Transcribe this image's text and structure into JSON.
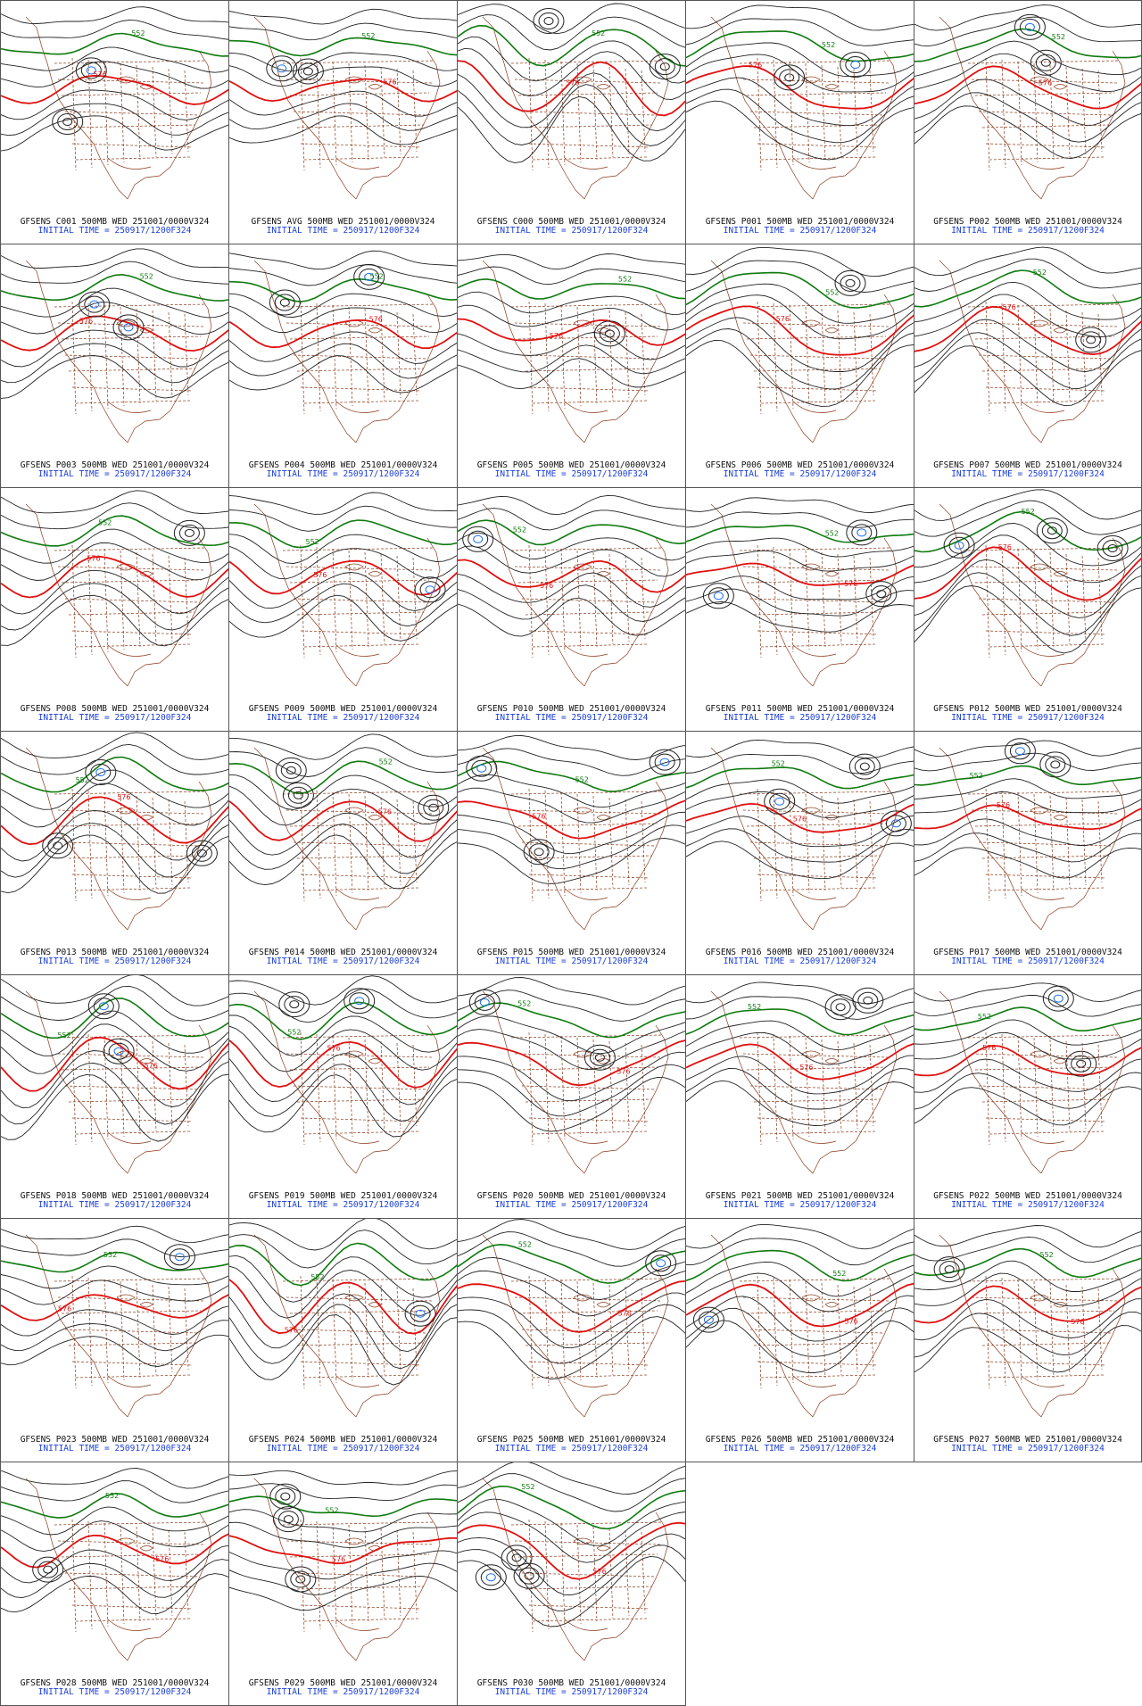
{
  "colors": {
    "contour": "#222222",
    "contour_552": "#0f7a0f",
    "contour_576": "#e01010",
    "contour_low": "#1c6ff0",
    "map_outline": "#8b3a1a",
    "caption_model": "#111111",
    "caption_time": "#1c3fd6"
  },
  "contour_labels": {
    "green": "552",
    "red": "576"
  },
  "panels": [
    {
      "member": "C001",
      "caption": "GFSENS C001 500MB WED 251001/0000V324",
      "initial_time": "INITIAL TIME = 250917/1200F324"
    },
    {
      "member": "AVG",
      "caption": "GFSENS AVG 500MB WED 251001/0000V324",
      "initial_time": "INITIAL TIME = 250917/1200F324"
    },
    {
      "member": "C000",
      "caption": "GFSENS C000 500MB WED 251001/0000V324",
      "initial_time": "INITIAL TIME = 250917/1200F324"
    },
    {
      "member": "P001",
      "caption": "GFSENS P001 500MB WED 251001/0000V324",
      "initial_time": "INITIAL TIME = 250917/1200F324"
    },
    {
      "member": "P002",
      "caption": "GFSENS P002 500MB WED 251001/0000V324",
      "initial_time": "INITIAL TIME = 250917/1200F324"
    },
    {
      "member": "P003",
      "caption": "GFSENS P003 500MB WED 251001/0000V324",
      "initial_time": "INITIAL TIME = 250917/1200F324"
    },
    {
      "member": "P004",
      "caption": "GFSENS P004 500MB WED 251001/0000V324",
      "initial_time": "INITIAL TIME = 250917/1200F324"
    },
    {
      "member": "P005",
      "caption": "GFSENS P005 500MB WED 251001/0000V324",
      "initial_time": "INITIAL TIME = 250917/1200F324"
    },
    {
      "member": "P006",
      "caption": "GFSENS P006 500MB WED 251001/0000V324",
      "initial_time": "INITIAL TIME = 250917/1200F324"
    },
    {
      "member": "P007",
      "caption": "GFSENS P007 500MB WED 251001/0000V324",
      "initial_time": "INITIAL TIME = 250917/1200F324"
    },
    {
      "member": "P008",
      "caption": "GFSENS P008 500MB WED 251001/0000V324",
      "initial_time": "INITIAL TIME = 250917/1200F324"
    },
    {
      "member": "P009",
      "caption": "GFSENS P009 500MB WED 251001/0000V324",
      "initial_time": "INITIAL TIME = 250917/1200F324"
    },
    {
      "member": "P010",
      "caption": "GFSENS P010 500MB WED 251001/0000V324",
      "initial_time": "INITIAL TIME = 250917/1200F324"
    },
    {
      "member": "P011",
      "caption": "GFSENS P011 500MB WED 251001/0000V324",
      "initial_time": "INITIAL TIME = 250917/1200F324"
    },
    {
      "member": "P012",
      "caption": "GFSENS P012 500MB WED 251001/0000V324",
      "initial_time": "INITIAL TIME = 250917/1200F324"
    },
    {
      "member": "P013",
      "caption": "GFSENS P013 500MB WED 251001/0000V324",
      "initial_time": "INITIAL TIME = 250917/1200F324"
    },
    {
      "member": "P014",
      "caption": "GFSENS P014 500MB WED 251001/0000V324",
      "initial_time": "INITIAL TIME = 250917/1200F324"
    },
    {
      "member": "P015",
      "caption": "GFSENS P015 500MB WED 251001/0000V324",
      "initial_time": "INITIAL TIME = 250917/1200F324"
    },
    {
      "member": "P016",
      "caption": "GFSENS P016 500MB WED 251001/0000V324",
      "initial_time": "INITIAL TIME = 250917/1200F324"
    },
    {
      "member": "P017",
      "caption": "GFSENS P017 500MB WED 251001/0000V324",
      "initial_time": "INITIAL TIME = 250917/1200F324"
    },
    {
      "member": "P018",
      "caption": "GFSENS P018 500MB WED 251001/0000V324",
      "initial_time": "INITIAL TIME = 250917/1200F324"
    },
    {
      "member": "P019",
      "caption": "GFSENS P019 500MB WED 251001/0000V324",
      "initial_time": "INITIAL TIME = 250917/1200F324"
    },
    {
      "member": "P020",
      "caption": "GFSENS P020 500MB WED 251001/0000V324",
      "initial_time": "INITIAL TIME = 250917/1200F324"
    },
    {
      "member": "P021",
      "caption": "GFSENS P021 500MB WED 251001/0000V324",
      "initial_time": "INITIAL TIME = 250917/1200F324"
    },
    {
      "member": "P022",
      "caption": "GFSENS P022 500MB WED 251001/0000V324",
      "initial_time": "INITIAL TIME = 250917/1200F324"
    },
    {
      "member": "P023",
      "caption": "GFSENS P023 500MB WED 251001/0000V324",
      "initial_time": "INITIAL TIME = 250917/1200F324"
    },
    {
      "member": "P024",
      "caption": "GFSENS P024 500MB WED 251001/0000V324",
      "initial_time": "INITIAL TIME = 250917/1200F324"
    },
    {
      "member": "P025",
      "caption": "GFSENS P025 500MB WED 251001/0000V324",
      "initial_time": "INITIAL TIME = 250917/1200F324"
    },
    {
      "member": "P026",
      "caption": "GFSENS P026 500MB WED 251001/0000V324",
      "initial_time": "INITIAL TIME = 250917/1200F324"
    },
    {
      "member": "P027",
      "caption": "GFSENS P027 500MB WED 251001/0000V324",
      "initial_time": "INITIAL TIME = 250917/1200F324"
    },
    {
      "member": "P028",
      "caption": "GFSENS P028 500MB WED 251001/0000V324",
      "initial_time": "INITIAL TIME = 250917/1200F324"
    },
    {
      "member": "P029",
      "caption": "GFSENS P029 500MB WED 251001/0000V324",
      "initial_time": "INITIAL TIME = 250917/1200F324"
    },
    {
      "member": "P030",
      "caption": "GFSENS P030 500MB WED 251001/0000V324",
      "initial_time": "INITIAL TIME = 250917/1200F324"
    }
  ]
}
